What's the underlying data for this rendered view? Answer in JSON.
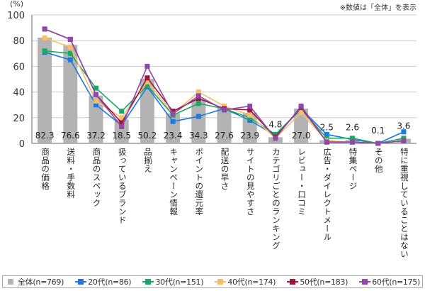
{
  "chart_data": {
    "type": "bar+line",
    "unit_label": "(%)",
    "note": "※数値は「全体」を表示",
    "ylim": [
      0,
      100
    ],
    "yticks": [
      0,
      20,
      40,
      60,
      80,
      100
    ],
    "grid": true,
    "legend_position": "bottom",
    "categories": [
      "商品の価格",
      "送料・手数料",
      "商品のスペック",
      "扱っているブランド",
      "品揃え",
      "キャンペーン情報",
      "ポイントの還元率",
      "配送の早さ",
      "サイトの見やすさ",
      "カテゴリごとのランキング",
      "レビュー・口コミ",
      "広告・ダイレクトメール",
      "特集ページ",
      "その他",
      "特に重視していることはない"
    ],
    "bar_series": {
      "name": "全体(n=769)",
      "color": "#b3b3b3",
      "values": [
        82.3,
        76.6,
        37.2,
        18.5,
        50.2,
        23.4,
        34.3,
        27.6,
        23.9,
        4.8,
        27.0,
        2.5,
        2.6,
        0.1,
        3.6
      ],
      "labels": [
        "82.3",
        "76.6",
        "37.2",
        "18.5",
        "50.2",
        "23.4",
        "34.3",
        "27.6",
        "23.9",
        "4.8",
        "27.0",
        "2.5",
        "2.6",
        "0.1",
        "3.6"
      ]
    },
    "series": [
      {
        "name": "20代(n=86)",
        "color": "#1f78e0",
        "values": [
          71,
          65,
          30,
          14,
          44,
          17,
          21,
          27,
          18,
          6,
          27,
          7,
          3,
          0,
          9
        ]
      },
      {
        "name": "30代(n=151)",
        "color": "#1aa864",
        "values": [
          72,
          70,
          43,
          25,
          45,
          22,
          31,
          27,
          20,
          7,
          27,
          4,
          4,
          0,
          4
        ]
      },
      {
        "name": "40代(n=174)",
        "color": "#f7bd6b",
        "values": [
          82,
          75,
          33,
          20,
          48,
          23,
          40,
          29,
          22,
          4,
          24,
          2,
          1,
          0,
          2
        ]
      },
      {
        "name": "50代(n=183)",
        "color": "#a0143c",
        "values": [
          89,
          81,
          38,
          16,
          51,
          25,
          35,
          27,
          26,
          5,
          28,
          1,
          1,
          0,
          2
        ]
      },
      {
        "name": "60代(n=175)",
        "color": "#8e4aa8",
        "values": [
          89,
          81,
          38,
          13,
          60,
          23,
          37,
          26,
          29,
          4,
          29,
          1,
          1,
          0,
          2
        ]
      }
    ]
  }
}
